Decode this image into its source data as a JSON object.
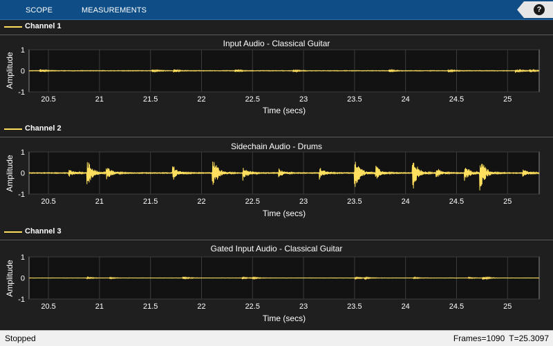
{
  "toolstrip": {
    "tabs": [
      "SCOPE",
      "MEASUREMENTS"
    ],
    "help_label": "?"
  },
  "colors": {
    "trace": "#ffdf5d",
    "plot_bg": "#121212",
    "grid": "#3c3c3c",
    "toolstrip": "#0f4d86"
  },
  "panels": [
    {
      "legend": "Channel 1",
      "title": "Input Audio - Classical Guitar",
      "ylabel": "Amplitude",
      "xlabel": "Time (secs)"
    },
    {
      "legend": "Channel 2",
      "title": "Sidechain Audio - Drums",
      "ylabel": "Amplitude",
      "xlabel": "Time (secs)"
    },
    {
      "legend": "Channel 3",
      "title": "Gated Input Audio - Classical Guitar",
      "ylabel": "Amplitude",
      "xlabel": "Time (secs)"
    }
  ],
  "chart_data": [
    {
      "type": "line",
      "title": "Input Audio - Classical Guitar",
      "xlabel": "Time (secs)",
      "ylabel": "Amplitude",
      "xlim": [
        20.3097,
        25.3097
      ],
      "ylim": [
        -1,
        1
      ],
      "xticks": [
        "20.5",
        "21",
        "21.5",
        "22",
        "22.5",
        "23",
        "23.5",
        "24",
        "24.5",
        "25"
      ],
      "yticks": [
        "1",
        "0",
        "-1"
      ],
      "grid": true,
      "series": [
        {
          "name": "Channel 1",
          "noise": 0.012,
          "events": [
            [
              20.42,
              0.08
            ],
            [
              21.52,
              0.06
            ],
            [
              21.73,
              0.07
            ],
            [
              22.33,
              0.06
            ],
            [
              22.9,
              0.05
            ],
            [
              23.84,
              0.05
            ],
            [
              24.42,
              0.06
            ],
            [
              25.08,
              0.09
            ],
            [
              25.22,
              0.05
            ]
          ]
        }
      ]
    },
    {
      "type": "line",
      "title": "Sidechain Audio - Drums",
      "xlabel": "Time (secs)",
      "ylabel": "Amplitude",
      "xlim": [
        20.3097,
        25.3097
      ],
      "ylim": [
        -1,
        1
      ],
      "xticks": [
        "20.5",
        "21",
        "21.5",
        "22",
        "22.5",
        "23",
        "23.5",
        "24",
        "24.5",
        "25"
      ],
      "yticks": [
        "1",
        "0",
        "-1"
      ],
      "grid": true,
      "series": [
        {
          "name": "Channel 2",
          "noise": 0.02,
          "events": [
            [
              20.7,
              0.2
            ],
            [
              20.88,
              0.75
            ],
            [
              21.07,
              0.35
            ],
            [
              21.72,
              0.38
            ],
            [
              22.11,
              0.85
            ],
            [
              22.41,
              0.35
            ],
            [
              22.76,
              0.2
            ],
            [
              23.16,
              0.3
            ],
            [
              23.5,
              0.85
            ],
            [
              23.71,
              0.35
            ],
            [
              24.07,
              0.85
            ],
            [
              24.3,
              0.3
            ],
            [
              24.58,
              0.4
            ],
            [
              24.73,
              0.85
            ],
            [
              25.15,
              0.2
            ]
          ]
        }
      ]
    },
    {
      "type": "line",
      "title": "Gated Input Audio - Classical Guitar",
      "xlabel": "Time (secs)",
      "ylabel": "Amplitude",
      "xlim": [
        20.3097,
        25.3097
      ],
      "ylim": [
        -1,
        1
      ],
      "xticks": [
        "20.5",
        "21",
        "21.5",
        "22",
        "22.5",
        "23",
        "23.5",
        "24",
        "24.5",
        "25"
      ],
      "yticks": [
        "1",
        "0",
        "-1"
      ],
      "grid": true,
      "series": [
        {
          "name": "Channel 3",
          "noise": 0.006,
          "events": [
            [
              20.88,
              0.04
            ],
            [
              21.1,
              0.03
            ],
            [
              21.82,
              0.07
            ],
            [
              22.4,
              0.05
            ],
            [
              22.5,
              0.04
            ],
            [
              23.51,
              0.05
            ],
            [
              23.6,
              0.04
            ],
            [
              24.08,
              0.04
            ],
            [
              24.62,
              0.03
            ],
            [
              24.76,
              0.09
            ]
          ]
        }
      ]
    }
  ],
  "status": {
    "state": "Stopped",
    "frames": "Frames=1090",
    "time": "T=25.3097"
  }
}
